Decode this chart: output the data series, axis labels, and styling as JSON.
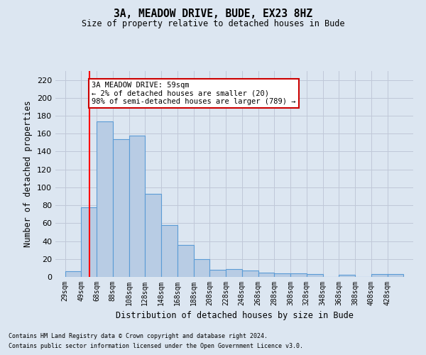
{
  "title": "3A, MEADOW DRIVE, BUDE, EX23 8HZ",
  "subtitle": "Size of property relative to detached houses in Bude",
  "xlabel": "Distribution of detached houses by size in Bude",
  "ylabel": "Number of detached properties",
  "footnote1": "Contains HM Land Registry data © Crown copyright and database right 2024.",
  "footnote2": "Contains public sector information licensed under the Open Government Licence v3.0.",
  "bar_labels": [
    "29sqm",
    "49sqm",
    "68sqm",
    "88sqm",
    "108sqm",
    "128sqm",
    "148sqm",
    "168sqm",
    "188sqm",
    "208sqm",
    "228sqm",
    "248sqm",
    "268sqm",
    "288sqm",
    "308sqm",
    "328sqm",
    "348sqm",
    "368sqm",
    "388sqm",
    "408sqm",
    "428sqm"
  ],
  "bar_values": [
    6,
    78,
    174,
    154,
    158,
    93,
    58,
    36,
    20,
    8,
    9,
    7,
    5,
    4,
    4,
    3,
    0,
    2,
    0,
    3,
    3
  ],
  "bar_color": "#b8cce4",
  "bar_edge_color": "#5b9bd5",
  "grid_color": "#c0c8d8",
  "background_color": "#dce6f1",
  "annotation_line1": "3A MEADOW DRIVE: 59sqm",
  "annotation_line2": "← 2% of detached houses are smaller (20)",
  "annotation_line3": "98% of semi-detached houses are larger (789) →",
  "annotation_box_color": "#ffffff",
  "annotation_box_edge_color": "#cc0000",
  "red_line_x": 59,
  "ylim": [
    0,
    230
  ],
  "yticks": [
    0,
    20,
    40,
    60,
    80,
    100,
    120,
    140,
    160,
    180,
    200,
    220
  ],
  "bin_starts": [
    29,
    49,
    68,
    88,
    108,
    128,
    148,
    168,
    188,
    208,
    228,
    248,
    268,
    288,
    308,
    328,
    348,
    368,
    388,
    408,
    428
  ],
  "bin_width": 20
}
